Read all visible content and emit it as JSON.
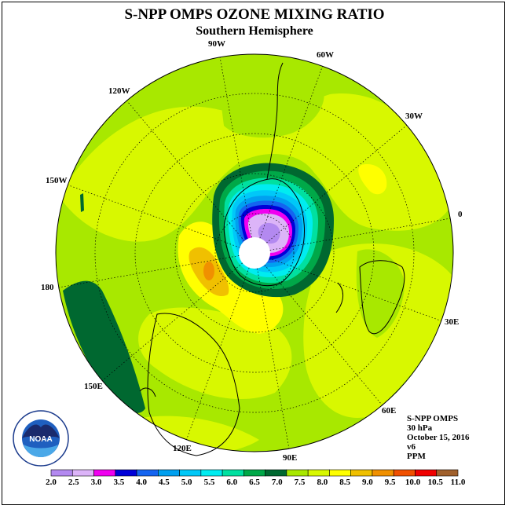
{
  "title": "S-NPP OMPS OZONE MIXING RATIO",
  "subtitle": "Southern Hemisphere",
  "longitude_labels": [
    "90W",
    "60W",
    "30W",
    "0",
    "30E",
    "60E",
    "90E",
    "120E",
    "150E",
    "180",
    "150W",
    "120W"
  ],
  "info": {
    "instrument": "S-NPP OMPS",
    "level": "30 hPa",
    "date": "October 15, 2016",
    "version": "v6",
    "units": "PPM"
  },
  "logo": {
    "text": "NOAA",
    "ring_text": "NATIONAL OCEANIC AND ATMOSPHERIC ADMINISTRATION · U.S. DEPARTMENT OF COMMERCE",
    "icon": "noaa-logo-icon"
  },
  "colorbar": {
    "labels": [
      "2.0",
      "2.5",
      "3.0",
      "3.5",
      "4.0",
      "4.5",
      "5.0",
      "5.5",
      "6.0",
      "6.5",
      "7.0",
      "7.5",
      "8.0",
      "8.5",
      "9.0",
      "9.5",
      "10.0",
      "10.5",
      "11.0"
    ],
    "colors": [
      "#b389f0",
      "#dcb4f8",
      "#f000f0",
      "#0000d8",
      "#1464f0",
      "#00a0f0",
      "#00c8f8",
      "#00ecf0",
      "#00e0a0",
      "#00a848",
      "#006830",
      "#a8e800",
      "#d8f800",
      "#ffff00",
      "#f0c000",
      "#f09000",
      "#f05000",
      "#f00000",
      "#a0602c"
    ]
  }
}
